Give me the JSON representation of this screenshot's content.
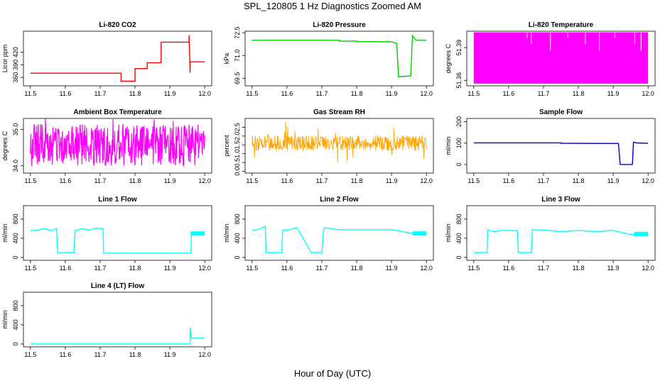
{
  "figure": {
    "title": "SPL_120805  1 Hz Diagnostics Zoomed AM",
    "xlabel": "Hour of Day (UTC)"
  },
  "chart_data": [
    {
      "type": "line",
      "title": "Li-820 CO2",
      "ylabel": "Licor ppm",
      "color": "#ff0000",
      "xlim": [
        11.48,
        12.02
      ],
      "ylim": [
        340,
        470
      ],
      "xticks": [
        "11.5",
        "11.6",
        "11.7",
        "11.8",
        "11.9",
        "12.0"
      ],
      "yticks": [
        "360",
        "390",
        "420"
      ],
      "series": [
        {
          "x": [
            11.5,
            11.76,
            11.76,
            11.8,
            11.8,
            11.835,
            11.835,
            11.875,
            11.875,
            11.955,
            11.955,
            11.958,
            11.958,
            12.0
          ],
          "y": [
            370,
            370,
            351,
            351,
            381,
            381,
            395,
            395,
            444,
            444,
            460,
            371,
            397,
            397
          ]
        }
      ]
    },
    {
      "type": "line",
      "title": "Li-820 Pressure",
      "ylabel": "kPa",
      "color": "#00cc00",
      "xlim": [
        11.48,
        12.02
      ],
      "ylim": [
        69.0,
        72.6
      ],
      "xticks": [
        "11.5",
        "11.6",
        "11.7",
        "11.8",
        "11.9",
        "12.0"
      ],
      "yticks": [
        "69.5",
        "71.0",
        "72.5"
      ],
      "series": [
        {
          "x": [
            11.5,
            11.75,
            11.75,
            11.8,
            11.8,
            11.9,
            11.915,
            11.92,
            11.955,
            11.96,
            11.97,
            12.0
          ],
          "y": [
            72.0,
            72.0,
            71.95,
            71.95,
            71.92,
            71.9,
            71.8,
            69.6,
            69.65,
            72.3,
            72.0,
            72.0
          ]
        }
      ]
    },
    {
      "type": "area",
      "title": "Li-820 Temperature",
      "ylabel": "degrees C",
      "color": "#ff00ff",
      "xlim": [
        11.48,
        12.02
      ],
      "ylim": [
        51.355,
        51.405
      ],
      "xticks": [
        "11.5",
        "11.6",
        "11.7",
        "11.8",
        "11.9",
        "12.0"
      ],
      "yticks": [
        "51.36",
        "51.39"
      ],
      "series": [
        {
          "x": [
            11.5,
            12.0
          ],
          "ymin": [
            51.357,
            51.357
          ],
          "ymax": [
            51.404,
            51.404
          ]
        }
      ]
    },
    {
      "type": "line",
      "title": "Ambient Box Temperature",
      "ylabel": "degrees C",
      "color": "#ff00ff",
      "xlim": [
        11.48,
        12.02
      ],
      "ylim": [
        33.8,
        35.3
      ],
      "xticks": [
        "11.5",
        "11.6",
        "11.7",
        "11.8",
        "11.9",
        "12.0"
      ],
      "yticks": [
        "34.0",
        "35.0"
      ],
      "series": [
        {
          "x": [
            11.5,
            12.0
          ],
          "y": [
            34.5,
            34.5
          ]
        }
      ]
    },
    {
      "type": "line",
      "title": "Gas Stream RH",
      "ylabel": "percent",
      "color": "#ffa500",
      "xlim": [
        11.48,
        12.02
      ],
      "ylim": [
        -0.1,
        3.0
      ],
      "xticks": [
        "11.5",
        "11.6",
        "11.7",
        "11.8",
        "11.9",
        "12.0"
      ],
      "yticks": [
        "0.0",
        "0.5",
        "1.0",
        "1.5",
        "2.0",
        "2.5"
      ],
      "series": [
        {
          "x": [
            11.5,
            12.0
          ],
          "y": [
            1.6,
            1.6
          ]
        }
      ]
    },
    {
      "type": "line",
      "title": "Sample Flow",
      "ylabel": "ml/min",
      "color": "#0000cc",
      "xlim": [
        11.48,
        12.02
      ],
      "ylim": [
        -40,
        215
      ],
      "xticks": [
        "11.5",
        "11.6",
        "11.7",
        "11.8",
        "11.9",
        "12.0"
      ],
      "yticks": [
        "0",
        "100",
        "200"
      ],
      "series": [
        {
          "x": [
            11.5,
            11.75,
            11.75,
            11.915,
            11.92,
            11.955,
            11.958,
            11.965,
            12.0
          ],
          "y": [
            101,
            101,
            99,
            98,
            0,
            0,
            105,
            101,
            99
          ]
        }
      ]
    },
    {
      "type": "line",
      "title": "Line 1 Flow",
      "ylabel": "ml/min",
      "color": "#00ffff",
      "xlim": [
        11.48,
        12.02
      ],
      "ylim": [
        -60,
        1080
      ],
      "xticks": [
        "11.5",
        "11.6",
        "11.7",
        "11.8",
        "11.9",
        "12.0"
      ],
      "yticks": [
        "0",
        "400",
        "800"
      ],
      "series": [
        {
          "x": [
            11.5,
            11.52,
            11.54,
            11.56,
            11.575,
            11.578,
            11.625,
            11.628,
            11.65,
            11.67,
            11.69,
            11.708,
            11.71,
            11.96,
            11.962,
            12.0
          ],
          "y": [
            560,
            570,
            600,
            560,
            600,
            100,
            100,
            560,
            600,
            570,
            610,
            600,
            90,
            90,
            500,
            500
          ]
        }
      ]
    },
    {
      "type": "line",
      "title": "Line 2 Flow",
      "ylabel": "ml/min",
      "color": "#00ffff",
      "xlim": [
        11.48,
        12.02
      ],
      "ylim": [
        -60,
        1080
      ],
      "xticks": [
        "11.5",
        "11.6",
        "11.7",
        "11.8",
        "11.9",
        "12.0"
      ],
      "yticks": [
        "0",
        "400",
        "800"
      ],
      "series": [
        {
          "x": [
            11.5,
            11.52,
            11.538,
            11.54,
            11.585,
            11.588,
            11.61,
            11.625,
            11.628,
            11.67,
            11.672,
            11.7,
            11.705,
            11.708,
            11.75,
            11.8,
            11.85,
            11.9,
            11.96,
            12.0
          ],
          "y": [
            560,
            590,
            650,
            100,
            100,
            570,
            580,
            620,
            630,
            100,
            100,
            100,
            580,
            620,
            580,
            580,
            580,
            580,
            500,
            500
          ]
        }
      ]
    },
    {
      "type": "line",
      "title": "Line 3 Flow",
      "ylabel": "ml/min",
      "color": "#00ffff",
      "xlim": [
        11.48,
        12.02
      ],
      "ylim": [
        -60,
        1080
      ],
      "xticks": [
        "11.5",
        "11.6",
        "11.7",
        "11.8",
        "11.9",
        "12.0"
      ],
      "yticks": [
        "0",
        "400",
        "800"
      ],
      "series": [
        {
          "x": [
            11.5,
            11.538,
            11.54,
            11.56,
            11.58,
            11.625,
            11.628,
            11.665,
            11.668,
            11.7,
            11.75,
            11.8,
            11.85,
            11.9,
            11.95,
            12.0
          ],
          "y": [
            100,
            100,
            570,
            540,
            560,
            560,
            100,
            100,
            580,
            570,
            540,
            560,
            540,
            560,
            480,
            490
          ]
        }
      ]
    },
    {
      "type": "line",
      "title": "Line 4 (LT) Flow",
      "ylabel": "ml/min",
      "color": "#00ffff",
      "xlim": [
        11.48,
        12.02
      ],
      "ylim": [
        -60,
        1080
      ],
      "xticks": [
        "11.5",
        "11.6",
        "11.7",
        "11.8",
        "11.9",
        "12.0"
      ],
      "yticks": [
        "0",
        "400",
        "800"
      ],
      "series": [
        {
          "x": [
            11.5,
            11.958,
            11.958,
            11.962,
            11.966,
            12.0
          ],
          "y": [
            0,
            0,
            350,
            120,
            120,
            120
          ]
        }
      ]
    }
  ]
}
